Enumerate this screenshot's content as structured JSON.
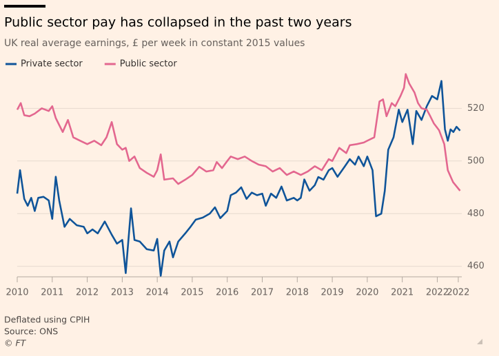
{
  "chart_data": {
    "type": "line",
    "title": "Public sector pay has collapsed in the past two years",
    "subtitle": "UK real average earnings, £ per week in constant 2015 values",
    "series": [
      {
        "name": "Private sector",
        "color": "#0f5499",
        "x": [
          2010,
          2010.08,
          2010.2,
          2010.3,
          2010.4,
          2010.5,
          2010.6,
          2010.75,
          2010.9,
          2011,
          2011.1,
          2011.2,
          2011.35,
          2011.5,
          2011.7,
          2011.9,
          2012,
          2012.15,
          2012.3,
          2012.5,
          2012.7,
          2012.85,
          2013,
          2013.1,
          2013.25,
          2013.35,
          2013.5,
          2013.7,
          2013.9,
          2014,
          2014.1,
          2014.2,
          2014.35,
          2014.45,
          2014.6,
          2014.8,
          2014.95,
          2015.1,
          2015.3,
          2015.5,
          2015.65,
          2015.8,
          2016,
          2016.1,
          2016.25,
          2016.4,
          2016.55,
          2016.7,
          2016.85,
          2017,
          2017.1,
          2017.25,
          2017.4,
          2017.55,
          2017.7,
          2017.9,
          2018,
          2018.1,
          2018.2,
          2018.35,
          2018.5,
          2018.6,
          2018.75,
          2018.9,
          2019,
          2019.15,
          2019.35,
          2019.5,
          2019.65,
          2019.75,
          2019.9,
          2020,
          2020.15,
          2020.25,
          2020.4,
          2020.5,
          2020.6,
          2020.75,
          2020.9,
          2021,
          2021.15,
          2021.3,
          2021.4,
          2021.55,
          2021.7,
          2021.85,
          2022,
          2022.12,
          2022.22,
          2022.3,
          2022.38,
          2022.46,
          2022.55,
          2022.65
        ],
        "values": [
          487.6,
          496.5,
          485.6,
          483,
          486,
          481,
          486,
          486.4,
          485,
          478,
          494,
          485,
          475,
          478,
          475.6,
          475,
          472.5,
          474,
          472.5,
          477,
          472,
          468.6,
          470,
          457.4,
          482,
          470,
          469.4,
          466.5,
          466,
          470.4,
          456.4,
          466,
          469.4,
          463.4,
          469.4,
          472.5,
          475,
          477.7,
          478.5,
          480,
          482.4,
          478.3,
          481,
          487,
          488,
          490,
          485.6,
          488,
          487,
          487.6,
          483,
          487.6,
          486,
          490.3,
          485,
          486,
          485,
          486,
          493,
          488.7,
          490.8,
          493.9,
          492.9,
          496.5,
          497.3,
          494,
          497.8,
          500.7,
          498.6,
          501.7,
          498,
          501.7,
          496.5,
          479,
          480,
          488.7,
          504.3,
          509,
          519.5,
          514.8,
          519.5,
          506.4,
          519,
          515.6,
          520.8,
          524.7,
          523.4,
          530.4,
          512,
          507.7,
          512,
          511,
          513,
          511.5
        ]
      },
      {
        "name": "Public sector",
        "color": "#e3678f",
        "x": [
          2010,
          2010.1,
          2010.2,
          2010.35,
          2010.5,
          2010.7,
          2010.9,
          2011,
          2011.1,
          2011.3,
          2011.45,
          2011.6,
          2011.8,
          2012,
          2012.2,
          2012.4,
          2012.55,
          2012.7,
          2012.85,
          2013,
          2013.1,
          2013.2,
          2013.35,
          2013.5,
          2013.7,
          2013.9,
          2014,
          2014.1,
          2014.2,
          2014.45,
          2014.6,
          2014.8,
          2015,
          2015.2,
          2015.4,
          2015.6,
          2015.7,
          2015.85,
          2016,
          2016.1,
          2016.3,
          2016.5,
          2016.7,
          2016.9,
          2017.1,
          2017.3,
          2017.5,
          2017.7,
          2017.9,
          2018.1,
          2018.3,
          2018.5,
          2018.7,
          2018.9,
          2019,
          2019.2,
          2019.4,
          2019.5,
          2019.7,
          2019.9,
          2020,
          2020.2,
          2020.35,
          2020.45,
          2020.55,
          2020.7,
          2020.8,
          2020.95,
          2021.05,
          2021.1,
          2021.2,
          2021.35,
          2021.45,
          2021.55,
          2021.7,
          2021.8,
          2021.9,
          2022.05,
          2022.2,
          2022.3,
          2022.45,
          2022.65
        ],
        "values": [
          519.5,
          522,
          517.4,
          517,
          518,
          520,
          519,
          520.8,
          516.3,
          511,
          515.6,
          509,
          507.7,
          506.4,
          507.7,
          506,
          509,
          514.8,
          506.4,
          504.3,
          505,
          500,
          501.7,
          497.3,
          495.5,
          494,
          496.5,
          502.5,
          492.9,
          493.4,
          491.3,
          492.9,
          494.7,
          497.8,
          496,
          496.5,
          499.6,
          497.3,
          500,
          501.7,
          500.7,
          501.7,
          500,
          498.6,
          498,
          496,
          497.3,
          494.7,
          496,
          494.7,
          496,
          498,
          496.5,
          500.7,
          500,
          505,
          503,
          506,
          506.4,
          507,
          507.7,
          509,
          522.6,
          523.4,
          517,
          522,
          520.8,
          524.7,
          527.8,
          533,
          529.4,
          526,
          522,
          520,
          519.5,
          517,
          514.3,
          511.7,
          506.4,
          496.5,
          492,
          488.7
        ]
      }
    ],
    "xlim": [
      2010,
      2022.7
    ],
    "xticks": [
      2010,
      2011,
      2012,
      2013,
      2014,
      2015,
      2016,
      2017,
      2018,
      2019,
      2020,
      2021,
      2022,
      {
        "value": 2022.6,
        "label": "2022"
      }
    ],
    "ylim": [
      456,
      535
    ],
    "yticks": [
      460,
      480,
      500,
      520
    ],
    "grid": true,
    "legend": "top-left",
    "notes": [
      "Deflated using CPIH",
      "Source: ONS",
      "© FT"
    ]
  }
}
